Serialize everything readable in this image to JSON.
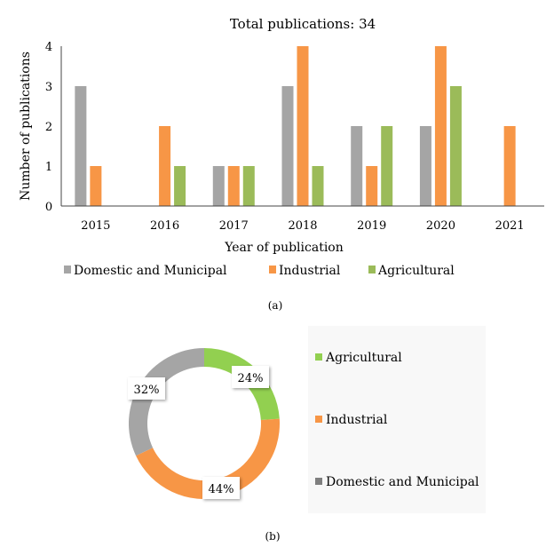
{
  "chart_data": [
    {
      "type": "bar",
      "title": "Total publications: 34",
      "xlabel": "Year of publication",
      "ylabel": "Number of publications",
      "ylim": [
        0,
        4
      ],
      "yticks": [
        "0",
        "1",
        "2",
        "3",
        "4"
      ],
      "categories": [
        "2015",
        "2016",
        "2017",
        "2018",
        "2019",
        "2020",
        "2021"
      ],
      "series": [
        {
          "name": "Domestic and Municipal",
          "color": "#a5a5a5",
          "values": [
            3,
            0,
            1,
            3,
            2,
            2,
            0
          ]
        },
        {
          "name": "Industrial",
          "color": "#f79646",
          "values": [
            1,
            2,
            1,
            4,
            1,
            4,
            2
          ]
        },
        {
          "name": "Agricultural",
          "color": "#9bbb59",
          "values": [
            0,
            1,
            1,
            1,
            2,
            3,
            0
          ]
        }
      ],
      "grid": false,
      "legend": "bottom",
      "caption": "(a)"
    },
    {
      "type": "pie",
      "donut": true,
      "slices": [
        {
          "name": "Agricultural",
          "value": 24,
          "label": "24%",
          "color": "#92d050"
        },
        {
          "name": "Industrial",
          "value": 44,
          "label": "44%",
          "color": "#f79646"
        },
        {
          "name": "Domestic and Municipal",
          "value": 32,
          "label": "32%",
          "color": "#a5a5a5"
        }
      ],
      "legend": "right",
      "legend_marker_colors": [
        "#92d050",
        "#f79646",
        "#7f7f7f"
      ],
      "caption": "(b)"
    }
  ]
}
